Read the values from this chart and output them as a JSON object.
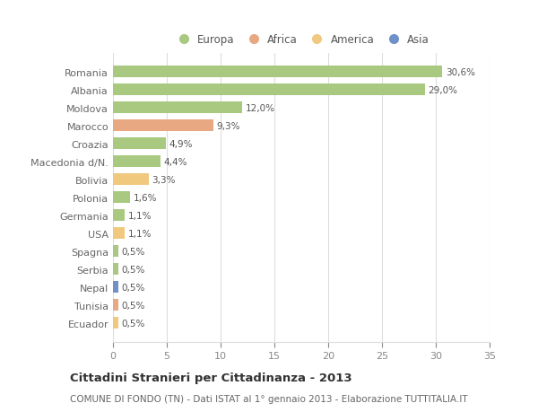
{
  "countries": [
    "Romania",
    "Albania",
    "Moldova",
    "Marocco",
    "Croazia",
    "Macedonia d/N.",
    "Bolivia",
    "Polonia",
    "Germania",
    "USA",
    "Spagna",
    "Serbia",
    "Nepal",
    "Tunisia",
    "Ecuador"
  ],
  "values": [
    30.6,
    29.0,
    12.0,
    9.3,
    4.9,
    4.4,
    3.3,
    1.6,
    1.1,
    1.1,
    0.5,
    0.5,
    0.5,
    0.5,
    0.5
  ],
  "labels": [
    "30,6%",
    "29,0%",
    "12,0%",
    "9,3%",
    "4,9%",
    "4,4%",
    "3,3%",
    "1,6%",
    "1,1%",
    "1,1%",
    "0,5%",
    "0,5%",
    "0,5%",
    "0,5%",
    "0,5%"
  ],
  "colors": [
    "#a8c97f",
    "#a8c97f",
    "#a8c97f",
    "#e8a882",
    "#a8c97f",
    "#a8c97f",
    "#f0c97f",
    "#a8c97f",
    "#a8c97f",
    "#f0c97f",
    "#a8c97f",
    "#a8c97f",
    "#7090c8",
    "#e8a882",
    "#f0c97f"
  ],
  "legend_labels": [
    "Europa",
    "Africa",
    "America",
    "Asia"
  ],
  "legend_colors": [
    "#a8c97f",
    "#e8a882",
    "#f0c97f",
    "#7090c8"
  ],
  "title": "Cittadini Stranieri per Cittadinanza - 2013",
  "subtitle": "COMUNE DI FONDO (TN) - Dati ISTAT al 1° gennaio 2013 - Elaborazione TUTTITALIA.IT",
  "xlim": [
    0,
    35
  ],
  "xticks": [
    0,
    5,
    10,
    15,
    20,
    25,
    30,
    35
  ],
  "bg_color": "#ffffff",
  "grid_color": "#dddddd",
  "bar_height": 0.65,
  "label_fontsize": 7.5,
  "ytick_fontsize": 8.0,
  "xtick_fontsize": 8.0,
  "legend_fontsize": 8.5,
  "title_fontsize": 9.5,
  "subtitle_fontsize": 7.5
}
